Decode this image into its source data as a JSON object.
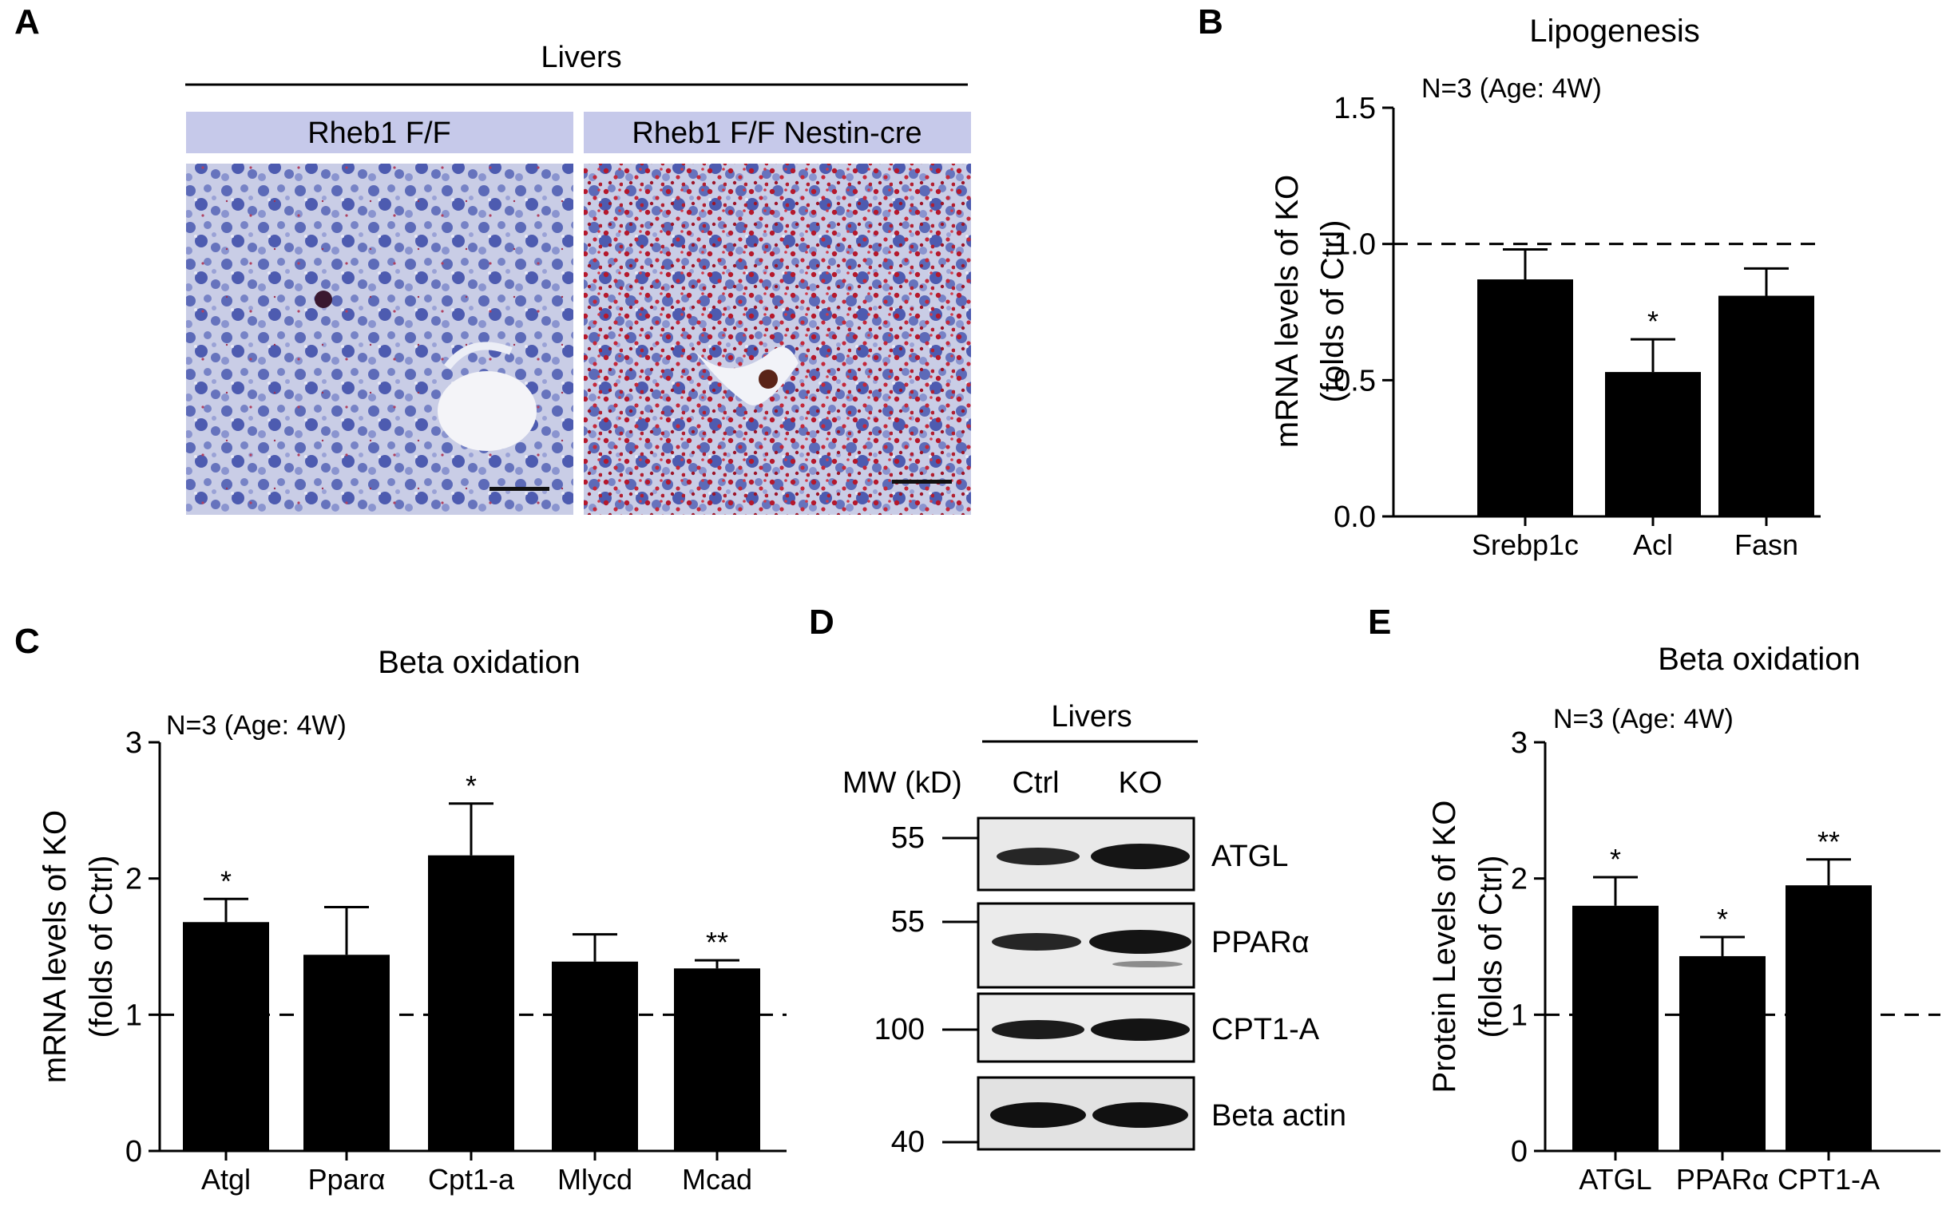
{
  "panel_letters": [
    "A",
    "B",
    "C",
    "D",
    "E"
  ],
  "panel_a": {
    "header": "Livers",
    "left_label": "Rheb1 F/F",
    "right_label": "Rheb1 F/F Nestin-cre"
  },
  "panel_d": {
    "header": "Livers",
    "mw_label": "MW (kD)",
    "lanes": [
      "Ctrl",
      "KO"
    ],
    "mw_values": [
      "55",
      "55",
      "100",
      "40"
    ],
    "proteins": [
      "ATGL",
      "PPARα",
      "CPT1-A",
      "Beta actin"
    ]
  },
  "chart_data": [
    {
      "panel": "B",
      "type": "bar",
      "title": "Lipogenesis",
      "annotation": "N=3 (Age: 4W)",
      "ylabel": "mRNA levels of KO\n(folds of Ctrl)",
      "categories": [
        "Srebp1c",
        "Acl",
        "Fasn"
      ],
      "values": [
        0.87,
        0.53,
        0.81
      ],
      "errors": [
        0.11,
        0.12,
        0.1
      ],
      "significance": [
        "",
        "*",
        ""
      ],
      "ylim": [
        0,
        1.5
      ],
      "yticks": [
        "0.0",
        "0.5",
        "1.0",
        "1.5"
      ],
      "reference_line": 1.0,
      "bar_color": "#000000"
    },
    {
      "panel": "C",
      "type": "bar",
      "title": "Beta oxidation",
      "annotation": "N=3 (Age: 4W)",
      "ylabel": "mRNA levels of KO\n(folds of Ctrl)",
      "categories": [
        "Atgl",
        "Pparα",
        "Cpt1-a",
        "Mlycd",
        "Mcad"
      ],
      "values": [
        1.68,
        1.44,
        2.17,
        1.39,
        1.34
      ],
      "errors": [
        0.17,
        0.35,
        0.38,
        0.2,
        0.06
      ],
      "significance": [
        "*",
        "",
        "*",
        "",
        "**"
      ],
      "ylim": [
        0,
        3
      ],
      "yticks": [
        "0",
        "1",
        "2",
        "3"
      ],
      "reference_line": 1.0,
      "bar_color": "#000000"
    },
    {
      "panel": "E",
      "type": "bar",
      "title": "Beta oxidation",
      "annotation": "N=3 (Age: 4W)",
      "ylabel": "Protein Levels of KO\n(folds of Ctrl)",
      "categories": [
        "ATGL",
        "PPARα",
        "CPT1-A"
      ],
      "values": [
        1.8,
        1.43,
        1.95
      ],
      "errors": [
        0.21,
        0.14,
        0.19
      ],
      "significance": [
        "*",
        "*",
        "**"
      ],
      "ylim": [
        0,
        3
      ],
      "yticks": [
        "0",
        "1",
        "2",
        "3"
      ],
      "reference_line": 1.0,
      "bar_color": "#000000"
    }
  ]
}
